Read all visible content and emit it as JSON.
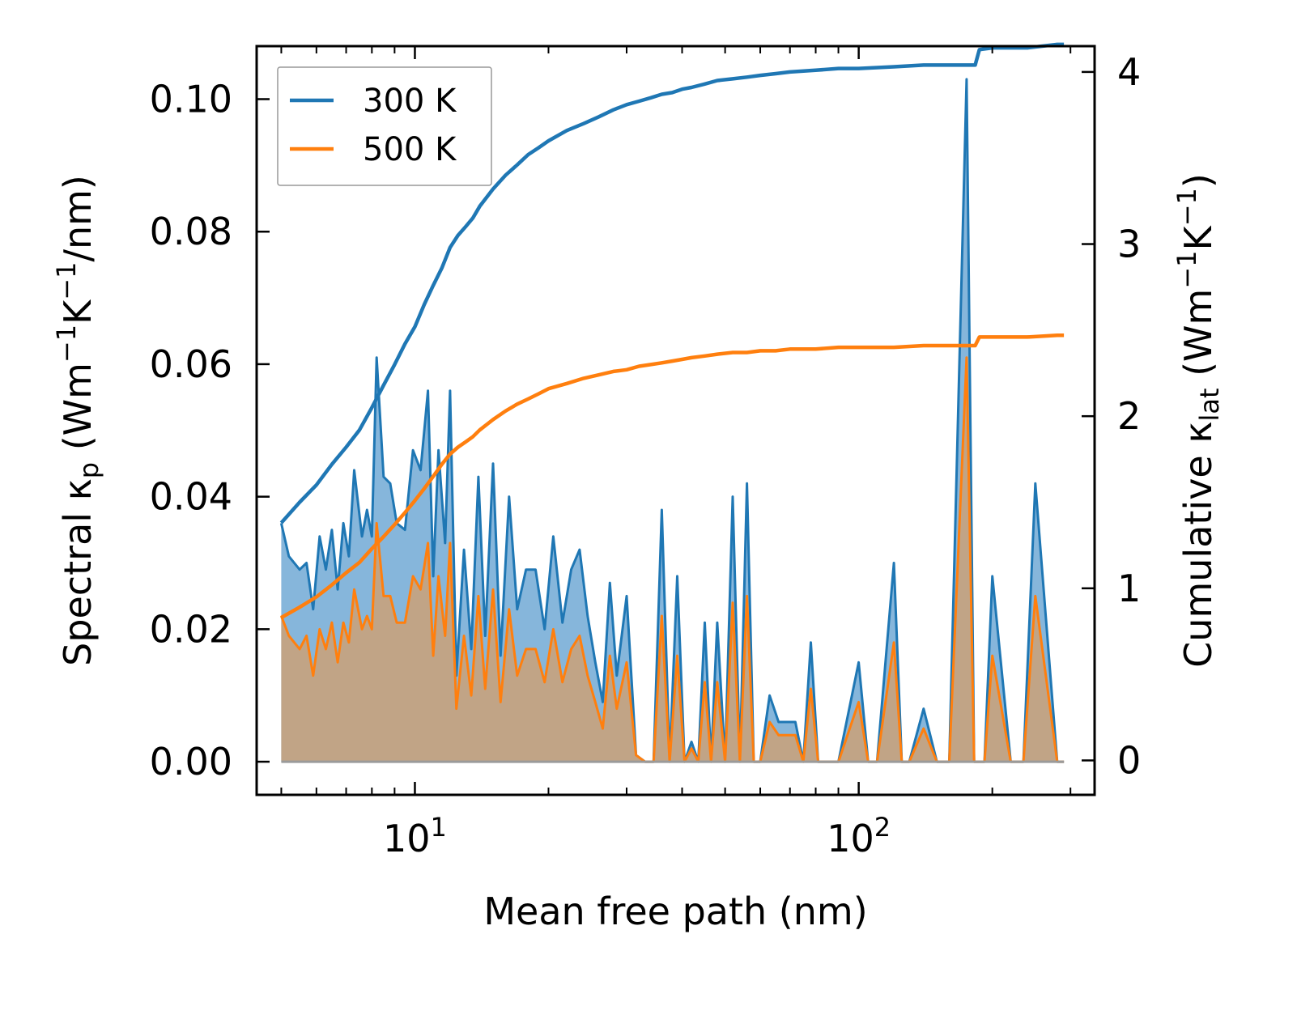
{
  "chart_data": {
    "type": "line",
    "title": "",
    "xlabel": "Mean free path (nm)",
    "xscale": "log",
    "xlim": [
      4.4,
      340
    ],
    "ylabel_left": "Spectral κp (Wm⁻¹K⁻¹/nm)",
    "ylabel_left_parts": [
      "Spectral κ",
      "p",
      " (Wm",
      "−1",
      "K",
      "−1",
      "/nm)"
    ],
    "ylim_left": [
      -0.005,
      0.108
    ],
    "ylabel_right": "Cumulative κlat (Wm⁻¹K⁻¹)",
    "ylabel_right_parts": [
      "Cumulative κ",
      "lat",
      " (Wm",
      "−1",
      "K",
      "−1",
      ")"
    ],
    "ylim_right": [
      -0.2,
      4.15
    ],
    "x_ticks": [
      {
        "value": 10,
        "base": "10",
        "exp": "1"
      },
      {
        "value": 100,
        "base": "10",
        "exp": "2"
      }
    ],
    "y_left_ticks": [
      "0.00",
      "0.02",
      "0.04",
      "0.06",
      "0.08",
      "0.10"
    ],
    "y_right_ticks": [
      "0",
      "1",
      "2",
      "3",
      "4"
    ],
    "legend": {
      "position": "top-left",
      "entries": [
        "300 K",
        "500 K"
      ]
    },
    "colors": {
      "300 K": "#1f77b4",
      "500 K": "#ff7f0e",
      "spectral_fill_300": "#7fb2d9",
      "spectral_fill_500": "#c8a27c"
    },
    "series": [
      {
        "name": "300 K",
        "kind": "spectral",
        "axis": "left",
        "x": [
          5.0,
          5.2,
          5.5,
          5.7,
          5.9,
          6.1,
          6.3,
          6.5,
          6.7,
          6.9,
          7.1,
          7.3,
          7.6,
          7.8,
          8.0,
          8.2,
          8.5,
          8.8,
          9.1,
          9.5,
          9.9,
          10.3,
          10.7,
          11.0,
          11.3,
          11.7,
          12.0,
          12.4,
          12.9,
          13.4,
          13.9,
          14.4,
          15.0,
          15.6,
          16.3,
          17.0,
          17.8,
          18.7,
          19.6,
          20.5,
          21.5,
          22.5,
          23.5,
          24.5,
          25.5,
          26.5,
          27.5,
          28.5,
          30.0,
          31.5,
          33.0,
          34.5,
          36.0,
          37.5,
          39.0,
          40.5,
          42.0,
          43.5,
          45.0,
          46.5,
          48.0,
          50.0,
          52.0,
          54.0,
          56.0,
          58.0,
          60.0,
          63.0,
          66.0,
          69.0,
          72.0,
          75.0,
          78.0,
          81.0,
          85.0,
          90.0,
          100.0,
          105.0,
          110.0,
          120.0,
          125.0,
          130.0,
          140.0,
          150.0,
          155.0,
          160.0,
          175.0,
          182.0,
          187.0,
          192.0,
          200.0,
          220.0,
          228.0,
          235.0,
          250.0,
          280.0,
          285.0,
          290.0
        ],
        "values": [
          0.036,
          0.031,
          0.029,
          0.03,
          0.023,
          0.034,
          0.029,
          0.035,
          0.026,
          0.036,
          0.031,
          0.044,
          0.034,
          0.038,
          0.034,
          0.061,
          0.043,
          0.042,
          0.036,
          0.035,
          0.047,
          0.044,
          0.056,
          0.028,
          0.047,
          0.033,
          0.056,
          0.013,
          0.032,
          0.017,
          0.043,
          0.019,
          0.045,
          0.016,
          0.04,
          0.023,
          0.029,
          0.029,
          0.02,
          0.034,
          0.021,
          0.029,
          0.032,
          0.022,
          0.015,
          0.009,
          0.027,
          0.013,
          0.025,
          0.001,
          0.0,
          0.0,
          0.038,
          0.0,
          0.028,
          0.0,
          0.003,
          0.0,
          0.021,
          0.0,
          0.021,
          0.0,
          0.04,
          0.0,
          0.042,
          0.0,
          0.0,
          0.01,
          0.006,
          0.006,
          0.006,
          0.0,
          0.018,
          0.0,
          0.0,
          0.0,
          0.015,
          0.0,
          0.0,
          0.03,
          0.0,
          0.0,
          0.008,
          0.0,
          0.0,
          0.0,
          0.103,
          0.0,
          0.0,
          0.0,
          0.028,
          0.0,
          0.0,
          0.0,
          0.042,
          0.0,
          0.0,
          0.0
        ]
      },
      {
        "name": "500 K",
        "kind": "spectral",
        "axis": "left",
        "x": [
          5.0,
          5.2,
          5.5,
          5.7,
          5.9,
          6.1,
          6.3,
          6.5,
          6.7,
          6.9,
          7.1,
          7.3,
          7.6,
          7.8,
          8.0,
          8.2,
          8.5,
          8.8,
          9.1,
          9.5,
          9.9,
          10.3,
          10.7,
          11.0,
          11.3,
          11.7,
          12.0,
          12.4,
          12.9,
          13.4,
          13.9,
          14.4,
          15.0,
          15.6,
          16.3,
          17.0,
          17.8,
          18.7,
          19.6,
          20.5,
          21.5,
          22.5,
          23.5,
          24.5,
          25.5,
          26.5,
          27.5,
          28.5,
          30.0,
          31.5,
          33.0,
          34.5,
          36.0,
          37.5,
          39.0,
          40.5,
          42.0,
          43.5,
          45.0,
          46.5,
          48.0,
          50.0,
          52.0,
          54.0,
          56.0,
          58.0,
          60.0,
          63.0,
          66.0,
          69.0,
          72.0,
          75.0,
          78.0,
          81.0,
          85.0,
          90.0,
          100.0,
          105.0,
          110.0,
          120.0,
          125.0,
          130.0,
          140.0,
          150.0,
          155.0,
          160.0,
          175.0,
          182.0,
          187.0,
          192.0,
          200.0,
          220.0,
          228.0,
          235.0,
          250.0,
          280.0,
          285.0,
          290.0
        ],
        "values": [
          0.022,
          0.019,
          0.017,
          0.019,
          0.013,
          0.02,
          0.017,
          0.021,
          0.015,
          0.021,
          0.018,
          0.026,
          0.02,
          0.022,
          0.02,
          0.036,
          0.025,
          0.025,
          0.021,
          0.021,
          0.028,
          0.026,
          0.033,
          0.016,
          0.028,
          0.019,
          0.033,
          0.008,
          0.019,
          0.01,
          0.025,
          0.011,
          0.026,
          0.009,
          0.023,
          0.013,
          0.017,
          0.017,
          0.012,
          0.02,
          0.012,
          0.017,
          0.019,
          0.013,
          0.009,
          0.005,
          0.016,
          0.008,
          0.015,
          0.001,
          0.0,
          0.0,
          0.022,
          0.0,
          0.016,
          0.0,
          0.002,
          0.0,
          0.012,
          0.0,
          0.012,
          0.0,
          0.024,
          0.0,
          0.025,
          0.0,
          0.0,
          0.006,
          0.004,
          0.004,
          0.004,
          0.0,
          0.011,
          0.0,
          0.0,
          0.0,
          0.009,
          0.0,
          0.0,
          0.018,
          0.0,
          0.0,
          0.005,
          0.0,
          0.0,
          0.0,
          0.061,
          0.0,
          0.0,
          0.0,
          0.016,
          0.0,
          0.0,
          0.0,
          0.025,
          0.0,
          0.0,
          0.0
        ]
      },
      {
        "name": "300 K",
        "kind": "cumulative",
        "axis": "right",
        "x": [
          5.0,
          5.5,
          6.0,
          6.5,
          7.0,
          7.5,
          8.0,
          8.5,
          9.0,
          9.5,
          10.0,
          10.5,
          11.0,
          11.5,
          12.0,
          12.5,
          13.0,
          13.5,
          14.0,
          15.0,
          16.0,
          17.0,
          18.0,
          19.0,
          20.0,
          22.0,
          24.0,
          26.0,
          28.0,
          30.0,
          32.0,
          34.0,
          36.0,
          38.0,
          40.0,
          42.0,
          45.0,
          48.0,
          52.0,
          56.0,
          60.0,
          65.0,
          70.0,
          80.0,
          90.0,
          100.0,
          120.0,
          140.0,
          160.0,
          183.0,
          187.0,
          200.0,
          240.0,
          280.0,
          290.0
        ],
        "values": [
          1.38,
          1.5,
          1.6,
          1.72,
          1.82,
          1.92,
          2.05,
          2.18,
          2.3,
          2.42,
          2.52,
          2.65,
          2.76,
          2.86,
          2.98,
          3.05,
          3.1,
          3.15,
          3.22,
          3.32,
          3.4,
          3.46,
          3.52,
          3.56,
          3.6,
          3.66,
          3.7,
          3.74,
          3.78,
          3.81,
          3.83,
          3.85,
          3.87,
          3.88,
          3.9,
          3.91,
          3.93,
          3.95,
          3.96,
          3.97,
          3.98,
          3.99,
          4.0,
          4.01,
          4.02,
          4.02,
          4.03,
          4.04,
          4.04,
          4.04,
          4.13,
          4.14,
          4.14,
          4.16,
          4.16
        ]
      },
      {
        "name": "500 K",
        "kind": "cumulative",
        "axis": "right",
        "x": [
          5.0,
          5.5,
          6.0,
          6.5,
          7.0,
          7.5,
          8.0,
          8.5,
          9.0,
          9.5,
          10.0,
          10.5,
          11.0,
          11.5,
          12.0,
          12.5,
          13.0,
          13.5,
          14.0,
          15.0,
          16.0,
          17.0,
          18.0,
          19.0,
          20.0,
          22.0,
          24.0,
          26.0,
          28.0,
          30.0,
          32.0,
          34.0,
          36.0,
          38.0,
          40.0,
          42.0,
          45.0,
          48.0,
          52.0,
          56.0,
          60.0,
          65.0,
          70.0,
          80.0,
          90.0,
          100.0,
          120.0,
          140.0,
          160.0,
          183.0,
          187.0,
          200.0,
          240.0,
          280.0,
          290.0
        ],
        "values": [
          0.83,
          0.89,
          0.95,
          1.02,
          1.09,
          1.15,
          1.23,
          1.3,
          1.37,
          1.44,
          1.51,
          1.58,
          1.65,
          1.72,
          1.78,
          1.82,
          1.85,
          1.88,
          1.92,
          1.98,
          2.03,
          2.07,
          2.1,
          2.13,
          2.16,
          2.19,
          2.22,
          2.24,
          2.26,
          2.27,
          2.29,
          2.3,
          2.31,
          2.32,
          2.33,
          2.34,
          2.35,
          2.36,
          2.37,
          2.37,
          2.38,
          2.38,
          2.39,
          2.39,
          2.4,
          2.4,
          2.4,
          2.41,
          2.41,
          2.41,
          2.46,
          2.46,
          2.46,
          2.47,
          2.47
        ]
      }
    ]
  }
}
